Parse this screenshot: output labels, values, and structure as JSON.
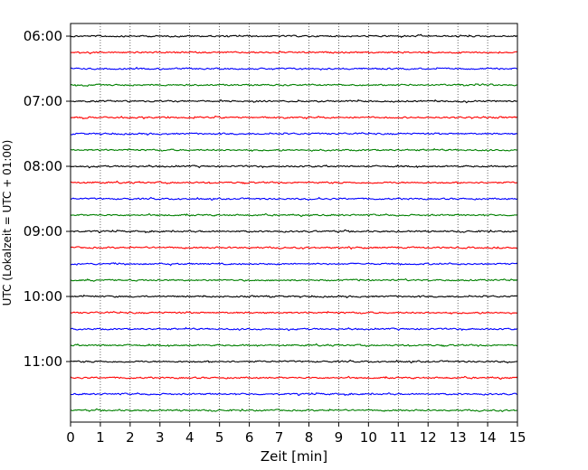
{
  "chart_data": {
    "type": "line",
    "title": "",
    "xlabel": "Zeit  [min]",
    "ylabel": "UTC (Lokalzeit = UTC + 01:00)",
    "xlim": [
      0,
      15
    ],
    "x_ticks": [
      "0",
      "1",
      "2",
      "3",
      "4",
      "5",
      "6",
      "7",
      "8",
      "9",
      "10",
      "11",
      "12",
      "13",
      "14",
      "15"
    ],
    "y_hour_labels": [
      "06:00",
      "07:00",
      "08:00",
      "09:00",
      "10:00",
      "11:00"
    ],
    "grid": "vertical dotted lines at each minute",
    "trace_colors": [
      "#000000",
      "#ff0000",
      "#0000ff",
      "#008000"
    ],
    "traces": [
      {
        "time": "06:00",
        "color": "#000000"
      },
      {
        "time": "06:15",
        "color": "#ff0000"
      },
      {
        "time": "06:30",
        "color": "#0000ff"
      },
      {
        "time": "06:45",
        "color": "#008000"
      },
      {
        "time": "07:00",
        "color": "#000000"
      },
      {
        "time": "07:15",
        "color": "#ff0000"
      },
      {
        "time": "07:30",
        "color": "#0000ff"
      },
      {
        "time": "07:45",
        "color": "#008000"
      },
      {
        "time": "08:00",
        "color": "#000000"
      },
      {
        "time": "08:15",
        "color": "#ff0000"
      },
      {
        "time": "08:30",
        "color": "#0000ff"
      },
      {
        "time": "08:45",
        "color": "#008000"
      },
      {
        "time": "09:00",
        "color": "#000000"
      },
      {
        "time": "09:15",
        "color": "#ff0000"
      },
      {
        "time": "09:30",
        "color": "#0000ff"
      },
      {
        "time": "09:45",
        "color": "#008000"
      },
      {
        "time": "10:00",
        "color": "#000000"
      },
      {
        "time": "10:15",
        "color": "#ff0000"
      },
      {
        "time": "10:30",
        "color": "#0000ff"
      },
      {
        "time": "10:45",
        "color": "#008000"
      },
      {
        "time": "11:00",
        "color": "#000000"
      },
      {
        "time": "11:15",
        "color": "#ff0000"
      },
      {
        "time": "11:30",
        "color": "#0000ff"
      },
      {
        "time": "11:45",
        "color": "#008000"
      }
    ]
  }
}
